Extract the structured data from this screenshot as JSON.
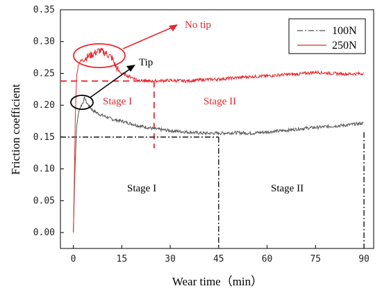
{
  "chart_data": {
    "type": "line",
    "xlabel": "Wear time（min）",
    "ylabel": "Friction coefficient",
    "xlim": [
      -4,
      93
    ],
    "ylim": [
      -0.025,
      0.35
    ],
    "x_ticks": [
      0,
      15,
      30,
      45,
      60,
      75,
      90
    ],
    "x_tick_labels": [
      "0",
      "15",
      "30",
      "45",
      "60",
      "75",
      "90"
    ],
    "y_ticks": [
      0.0,
      0.05,
      0.1,
      0.15,
      0.2,
      0.25,
      0.3,
      0.35
    ],
    "y_tick_labels": [
      "0.00",
      "0.05",
      "0.10",
      "0.15",
      "0.20",
      "0.25",
      "0.30",
      "0.35"
    ],
    "grid": false,
    "legend_position": "top-right",
    "series": [
      {
        "name": "100N",
        "color": "#555555",
        "dash": "dash-dot",
        "x": [
          0,
          0.5,
          1,
          1.5,
          2,
          2.5,
          3,
          3.5,
          4,
          5,
          6,
          8,
          10,
          12,
          15,
          18,
          20,
          25,
          30,
          35,
          40,
          45,
          50,
          55,
          60,
          65,
          70,
          75,
          80,
          85,
          90
        ],
        "y": [
          0.0,
          0.1,
          0.165,
          0.185,
          0.195,
          0.2,
          0.205,
          0.212,
          0.205,
          0.198,
          0.192,
          0.186,
          0.182,
          0.178,
          0.175,
          0.171,
          0.168,
          0.163,
          0.16,
          0.158,
          0.156,
          0.156,
          0.157,
          0.156,
          0.158,
          0.16,
          0.163,
          0.165,
          0.167,
          0.169,
          0.172
        ]
      },
      {
        "name": "250N",
        "color": "#e8262c",
        "dash": "solid",
        "x": [
          0,
          0.3,
          0.6,
          1,
          1.5,
          2,
          3,
          4,
          5,
          6,
          7,
          8,
          9,
          10,
          11,
          12,
          13,
          14,
          15,
          17,
          20,
          22,
          25,
          30,
          35,
          40,
          45,
          50,
          55,
          60,
          65,
          70,
          75,
          80,
          85,
          90
        ],
        "y": [
          0.0,
          0.08,
          0.18,
          0.245,
          0.262,
          0.268,
          0.272,
          0.275,
          0.278,
          0.28,
          0.283,
          0.286,
          0.284,
          0.282,
          0.278,
          0.274,
          0.262,
          0.254,
          0.25,
          0.246,
          0.24,
          0.238,
          0.238,
          0.239,
          0.238,
          0.24,
          0.241,
          0.243,
          0.245,
          0.246,
          0.248,
          0.249,
          0.252,
          0.25,
          0.249,
          0.25
        ]
      }
    ],
    "annotations": {
      "no_tip": "No tip",
      "tip": "Tip",
      "stage1_250": "Stage I",
      "stage2_250": "Stage II",
      "stage1_100": "Stage I",
      "stage2_100": "Stage II"
    },
    "reference_lines": {
      "red_y": 0.238,
      "red_x": 25,
      "black_y": 0.15,
      "black_x1": 45,
      "black_x2": 90
    }
  }
}
